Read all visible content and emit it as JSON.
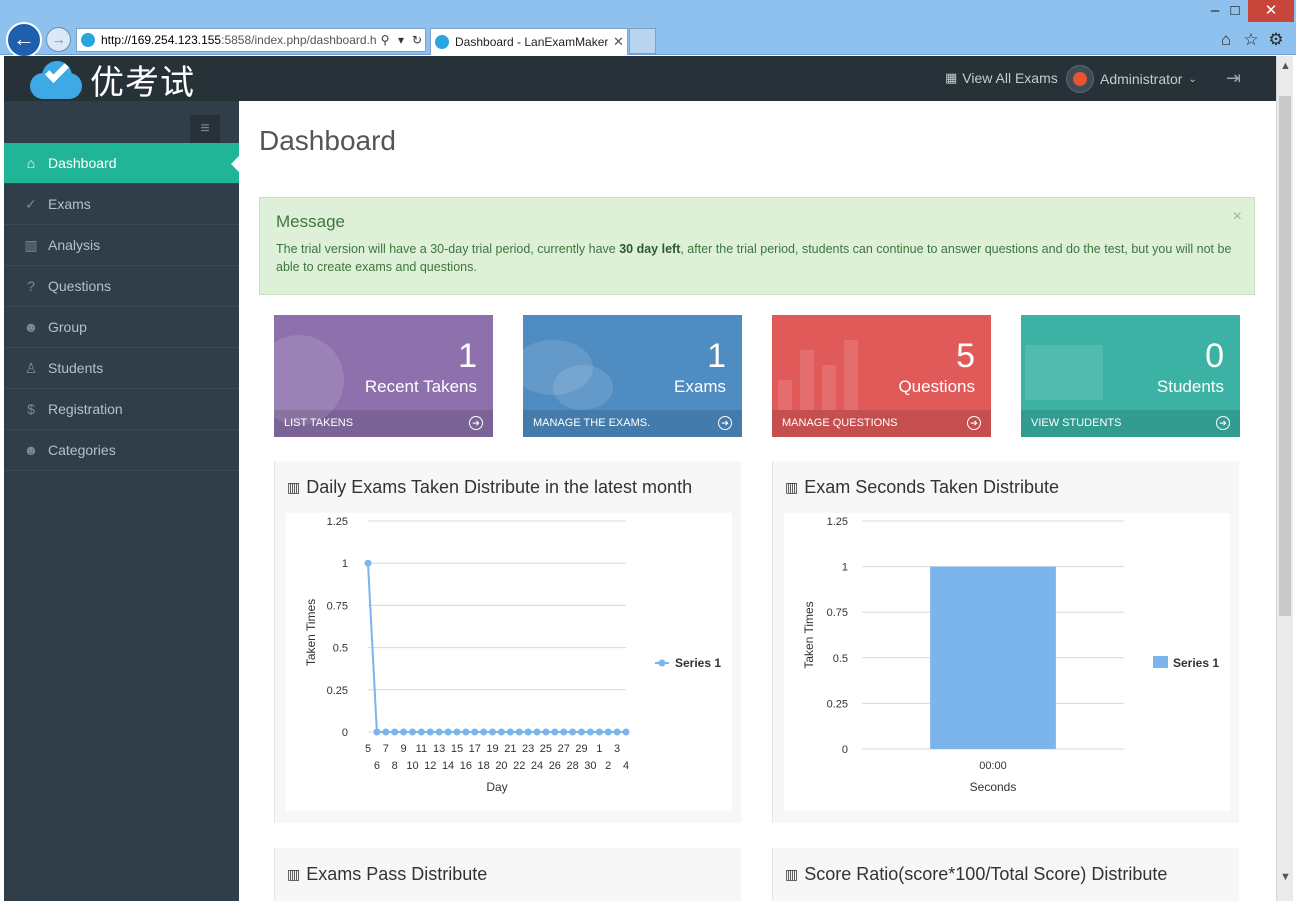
{
  "browser": {
    "url_host": "http://169.254.123.155",
    "url_rest": ":5858/index.php/dashboard.h",
    "tab_title": "Dashboard - LanExamMaker"
  },
  "app": {
    "logo_text": "优考试",
    "top_links": {
      "view_all_exams": "View All Exams",
      "user": "Administrator"
    }
  },
  "sidebar": {
    "items": [
      {
        "label": "Dashboard",
        "icon": "home-icon",
        "glyph": "⌂"
      },
      {
        "label": "Exams",
        "icon": "check-circle-icon",
        "glyph": "✓"
      },
      {
        "label": "Analysis",
        "icon": "bar-chart-icon",
        "glyph": "▥"
      },
      {
        "label": "Questions",
        "icon": "question-circle-icon",
        "glyph": "?"
      },
      {
        "label": "Group",
        "icon": "users-icon",
        "glyph": "☻"
      },
      {
        "label": "Students",
        "icon": "user-icon",
        "glyph": "♙"
      },
      {
        "label": "Registration",
        "icon": "dollar-icon",
        "glyph": "$"
      },
      {
        "label": "Categories",
        "icon": "users-icon",
        "glyph": "☻"
      }
    ]
  },
  "main": {
    "title": "Dashboard",
    "message": {
      "title": "Message",
      "body_pre": "The trial version will have a 30-day trial period, currently have ",
      "body_bold": "30 day left",
      "body_post": ", after the trial period, students can continue to answer questions and do the test, but you will not be able to create exams and questions.",
      "close": "×"
    },
    "tiles": [
      {
        "value": "1",
        "label": "Recent Takens",
        "link": "LIST TAKENS",
        "color": "#8e71ac"
      },
      {
        "value": "1",
        "label": "Exams",
        "link": "MANAGE THE EXAMS.",
        "color": "#4e8cc2"
      },
      {
        "value": "5",
        "label": "Questions",
        "link": "MANAGE QUESTIONS",
        "color": "#e15a5a"
      },
      {
        "value": "0",
        "label": "Students",
        "link": "VIEW STUDENTS",
        "color": "#3bb2a4"
      }
    ],
    "panels": {
      "daily": "Daily Exams Taken Distribute in the latest month",
      "seconds": "Exam Seconds Taken Distribute",
      "pass": "Exams Pass Distribute",
      "score": "Score Ratio(score*100/Total Score) Distribute"
    }
  },
  "chart_data": [
    {
      "type": "line",
      "title": "Daily Exams Taken Distribute in the latest month",
      "xlabel": "Day",
      "ylabel": "Taken Times",
      "ylim": [
        0,
        1.25
      ],
      "yticks": [
        0,
        0.25,
        0.5,
        0.75,
        1,
        1.25
      ],
      "x": [
        "5",
        "6",
        "7",
        "8",
        "9",
        "10",
        "11",
        "12",
        "13",
        "14",
        "15",
        "16",
        "17",
        "18",
        "19",
        "20",
        "21",
        "22",
        "23",
        "24",
        "25",
        "26",
        "27",
        "28",
        "29",
        "30",
        "1",
        "2",
        "3",
        "4"
      ],
      "series": [
        {
          "name": "Series 1",
          "values": [
            1,
            0,
            0,
            0,
            0,
            0,
            0,
            0,
            0,
            0,
            0,
            0,
            0,
            0,
            0,
            0,
            0,
            0,
            0,
            0,
            0,
            0,
            0,
            0,
            0,
            0,
            0,
            0,
            0,
            0
          ]
        }
      ],
      "legend": "right",
      "color": "#7cb5ec"
    },
    {
      "type": "bar",
      "title": "Exam Seconds Taken Distribute",
      "xlabel": "Seconds",
      "ylabel": "Taken Times",
      "ylim": [
        0,
        1.25
      ],
      "yticks": [
        0,
        0.25,
        0.5,
        0.75,
        1,
        1.25
      ],
      "categories": [
        "00:00"
      ],
      "series": [
        {
          "name": "Series 1",
          "values": [
            1
          ]
        }
      ],
      "legend": "right",
      "color": "#7cb5ec"
    }
  ]
}
